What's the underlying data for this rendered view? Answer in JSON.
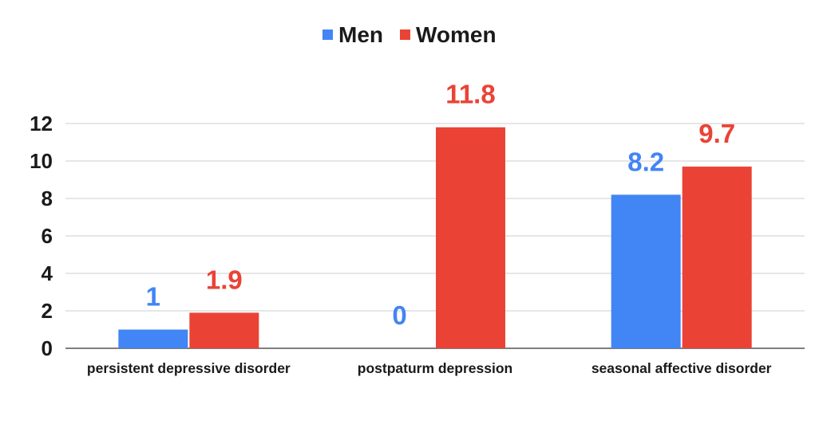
{
  "chart_data": {
    "type": "bar",
    "categories": [
      "persistent depressive disorder",
      "postpaturm depression",
      "seasonal affective disorder"
    ],
    "series": [
      {
        "name": "Men",
        "color": "#4285f4",
        "values": [
          1,
          0,
          8.2
        ],
        "labels": [
          "1",
          "0",
          "8.2"
        ]
      },
      {
        "name": "Women",
        "color": "#ea4335",
        "values": [
          1.9,
          11.8,
          9.7
        ],
        "labels": [
          "1.9",
          "11.8",
          "9.7"
        ]
      }
    ],
    "yticks": [
      "0",
      "2",
      "4",
      "6",
      "8",
      "10",
      "12"
    ],
    "ylim": [
      0,
      12
    ],
    "grid": true,
    "legend_position": "top-center",
    "title": "",
    "xlabel": "",
    "ylabel": ""
  }
}
